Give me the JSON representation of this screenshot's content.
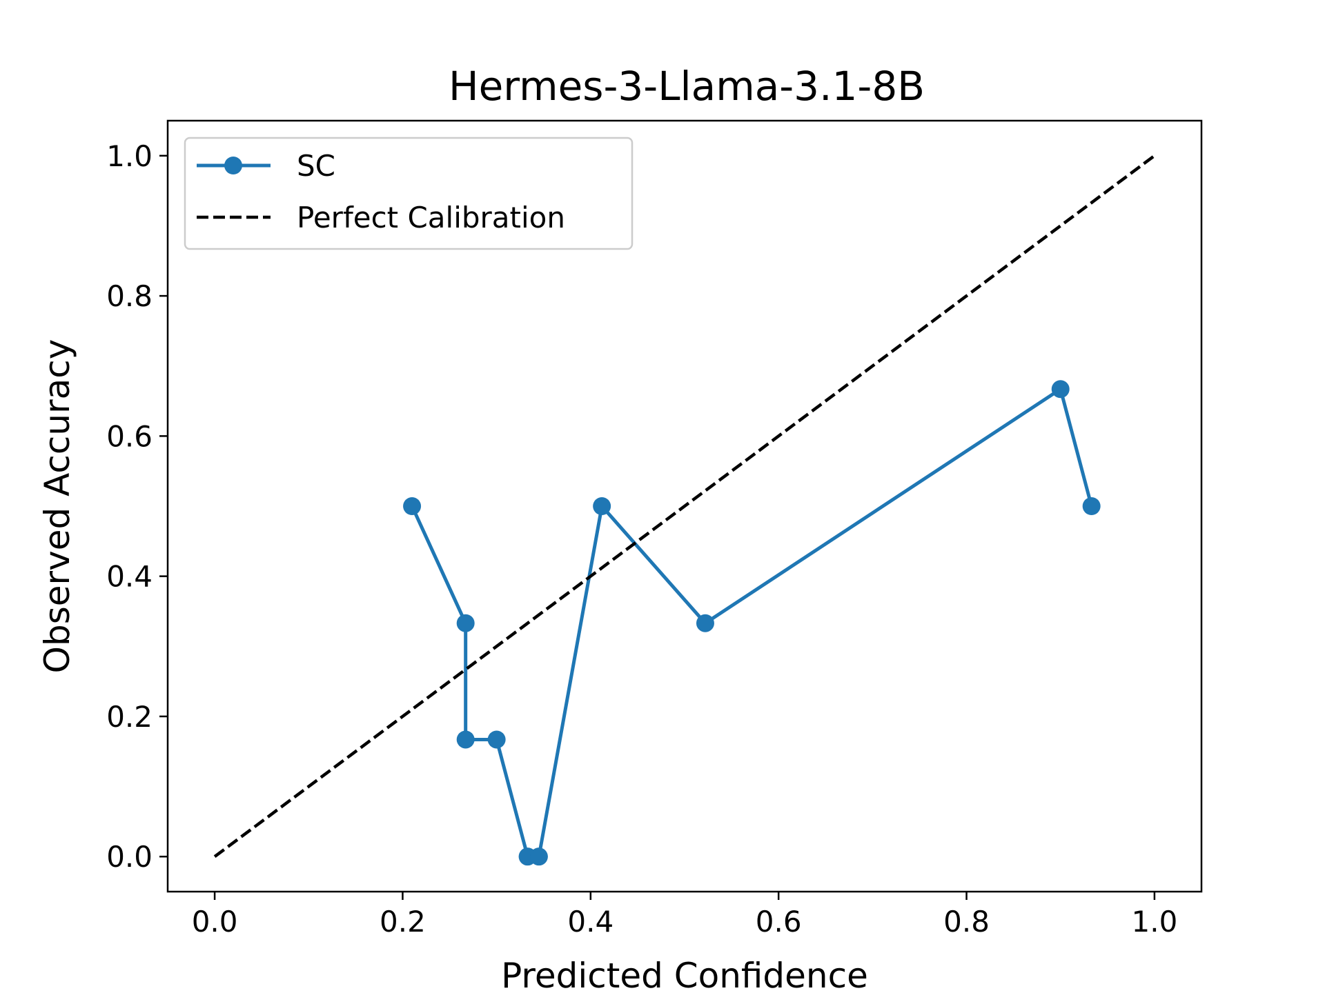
{
  "chart_data": {
    "type": "line",
    "title": "Hermes-3-Llama-3.1-8B",
    "xlabel": "Predicted Confidence",
    "ylabel": "Observed Accuracy",
    "xlim": [
      -0.05,
      1.05
    ],
    "ylim": [
      -0.05,
      1.05
    ],
    "xticks": [
      "0.0",
      "0.2",
      "0.4",
      "0.6",
      "0.8",
      "1.0"
    ],
    "yticks": [
      "0.0",
      "0.2",
      "0.4",
      "0.6",
      "0.8",
      "1.0"
    ],
    "grid": false,
    "legend_position": "upper-left",
    "series": [
      {
        "name": "SC",
        "color": "#1f77b4",
        "style": "solid",
        "marker": "circle",
        "x": [
          0.21,
          0.267,
          0.267,
          0.3,
          0.333,
          0.345,
          0.412,
          0.522,
          0.9,
          0.933
        ],
        "y": [
          0.5,
          0.333,
          0.167,
          0.167,
          0.0,
          0.0,
          0.5,
          0.333,
          0.667,
          0.5
        ]
      },
      {
        "name": "Perfect Calibration",
        "color": "#000000",
        "style": "dashed",
        "marker": "none",
        "x": [
          0.0,
          1.0
        ],
        "y": [
          0.0,
          1.0
        ]
      }
    ]
  }
}
